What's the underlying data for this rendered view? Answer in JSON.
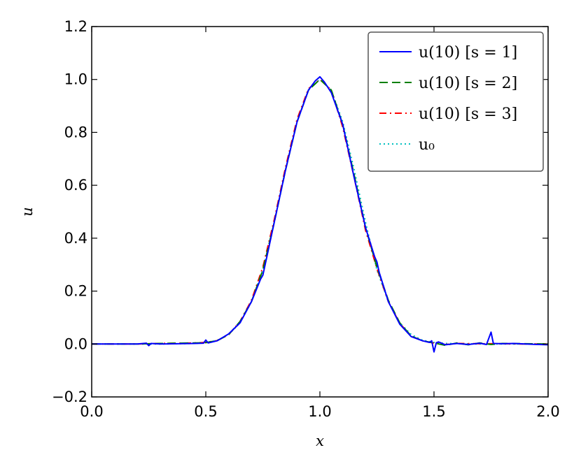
{
  "chart_data": {
    "type": "line",
    "xlabel": "x",
    "ylabel": "u",
    "xlim": [
      0.0,
      2.0
    ],
    "ylim": [
      -0.2,
      1.2
    ],
    "x_ticks": [
      "0.0",
      "0.5",
      "1.0",
      "1.5",
      "2.0"
    ],
    "y_ticks": [
      "−0.2",
      "0.0",
      "0.2",
      "0.4",
      "0.6",
      "0.8",
      "1.0",
      "1.2"
    ],
    "grid": false,
    "legend_position": "top-right",
    "series": [
      {
        "name": "u(10) [s = 1]",
        "color": "#0000ff",
        "style": "solid",
        "points": [
          [
            0.0,
            0.0
          ],
          [
            0.2,
            0.0
          ],
          [
            0.24,
            0.003
          ],
          [
            0.25,
            -0.006
          ],
          [
            0.26,
            0.002
          ],
          [
            0.3,
            0.0
          ],
          [
            0.45,
            0.002
          ],
          [
            0.49,
            0.003
          ],
          [
            0.5,
            0.015
          ],
          [
            0.51,
            0.004
          ],
          [
            0.55,
            0.012
          ],
          [
            0.6,
            0.038
          ],
          [
            0.65,
            0.08
          ],
          [
            0.7,
            0.16
          ],
          [
            0.74,
            0.245
          ],
          [
            0.75,
            0.26
          ],
          [
            0.76,
            0.3
          ],
          [
            0.8,
            0.46
          ],
          [
            0.85,
            0.66
          ],
          [
            0.9,
            0.84
          ],
          [
            0.95,
            0.96
          ],
          [
            0.98,
            0.995
          ],
          [
            1.0,
            1.01
          ],
          [
            1.02,
            0.99
          ],
          [
            1.05,
            0.95
          ],
          [
            1.1,
            0.83
          ],
          [
            1.15,
            0.63
          ],
          [
            1.2,
            0.44
          ],
          [
            1.24,
            0.33
          ],
          [
            1.25,
            0.31
          ],
          [
            1.26,
            0.27
          ],
          [
            1.3,
            0.16
          ],
          [
            1.35,
            0.075
          ],
          [
            1.4,
            0.028
          ],
          [
            1.45,
            0.012
          ],
          [
            1.48,
            0.006
          ],
          [
            1.49,
            0.012
          ],
          [
            1.5,
            -0.03
          ],
          [
            1.51,
            0.005
          ],
          [
            1.52,
            0.008
          ],
          [
            1.55,
            -0.003
          ],
          [
            1.6,
            0.002
          ],
          [
            1.65,
            -0.002
          ],
          [
            1.7,
            0.003
          ],
          [
            1.73,
            -0.002
          ],
          [
            1.75,
            0.045
          ],
          [
            1.76,
            0.002
          ],
          [
            1.8,
            0.001
          ],
          [
            1.85,
            0.002
          ],
          [
            1.9,
            0.0
          ],
          [
            2.0,
            -0.003
          ]
        ]
      },
      {
        "name": "u(10) [s = 2]",
        "color": "#008000",
        "style": "dashed",
        "points": [
          [
            0.0,
            0.0
          ],
          [
            0.2,
            0.0
          ],
          [
            0.3,
            0.002
          ],
          [
            0.45,
            0.004
          ],
          [
            0.5,
            0.005
          ],
          [
            0.55,
            0.013
          ],
          [
            0.6,
            0.035
          ],
          [
            0.65,
            0.085
          ],
          [
            0.7,
            0.16
          ],
          [
            0.75,
            0.28
          ],
          [
            0.8,
            0.46
          ],
          [
            0.85,
            0.66
          ],
          [
            0.9,
            0.84
          ],
          [
            0.95,
            0.96
          ],
          [
            1.0,
            1.0
          ],
          [
            1.05,
            0.96
          ],
          [
            1.1,
            0.83
          ],
          [
            1.15,
            0.64
          ],
          [
            1.2,
            0.44
          ],
          [
            1.25,
            0.29
          ],
          [
            1.3,
            0.165
          ],
          [
            1.35,
            0.08
          ],
          [
            1.4,
            0.03
          ],
          [
            1.45,
            0.012
          ],
          [
            1.5,
            0.004
          ],
          [
            1.55,
            -0.005
          ],
          [
            1.6,
            0.004
          ],
          [
            1.65,
            -0.003
          ],
          [
            1.7,
            0.004
          ],
          [
            1.75,
            -0.002
          ],
          [
            1.8,
            0.002
          ],
          [
            1.9,
            0.001
          ],
          [
            2.0,
            0.0
          ]
        ]
      },
      {
        "name": "u(10) [s = 3]",
        "color": "#ff0000",
        "style": "dashdot",
        "points": [
          [
            0.0,
            0.0
          ],
          [
            0.2,
            0.0
          ],
          [
            0.3,
            0.002
          ],
          [
            0.45,
            0.004
          ],
          [
            0.5,
            0.006
          ],
          [
            0.55,
            0.013
          ],
          [
            0.6,
            0.035
          ],
          [
            0.65,
            0.085
          ],
          [
            0.7,
            0.165
          ],
          [
            0.75,
            0.29
          ],
          [
            0.8,
            0.47
          ],
          [
            0.85,
            0.67
          ],
          [
            0.9,
            0.85
          ],
          [
            0.95,
            0.965
          ],
          [
            1.0,
            1.0
          ],
          [
            1.05,
            0.96
          ],
          [
            1.1,
            0.82
          ],
          [
            1.15,
            0.63
          ],
          [
            1.2,
            0.43
          ],
          [
            1.25,
            0.285
          ],
          [
            1.3,
            0.16
          ],
          [
            1.35,
            0.078
          ],
          [
            1.4,
            0.03
          ],
          [
            1.45,
            0.012
          ],
          [
            1.5,
            0.003
          ],
          [
            1.55,
            -0.002
          ],
          [
            1.6,
            0.002
          ],
          [
            1.7,
            0.001
          ],
          [
            1.8,
            0.001
          ],
          [
            1.9,
            0.0
          ],
          [
            2.0,
            0.0
          ]
        ]
      },
      {
        "name": "u₀",
        "color": "#00bfbf",
        "style": "dotted",
        "points": [
          [
            0.0,
            0.0
          ],
          [
            0.3,
            0.0
          ],
          [
            0.45,
            0.002
          ],
          [
            0.5,
            0.006
          ],
          [
            0.55,
            0.014
          ],
          [
            0.6,
            0.036
          ],
          [
            0.65,
            0.08
          ],
          [
            0.7,
            0.16
          ],
          [
            0.75,
            0.28
          ],
          [
            0.8,
            0.46
          ],
          [
            0.85,
            0.66
          ],
          [
            0.9,
            0.84
          ],
          [
            0.95,
            0.96
          ],
          [
            1.0,
            1.0
          ],
          [
            1.05,
            0.96
          ],
          [
            1.1,
            0.84
          ],
          [
            1.15,
            0.66
          ],
          [
            1.2,
            0.46
          ],
          [
            1.25,
            0.28
          ],
          [
            1.3,
            0.16
          ],
          [
            1.35,
            0.08
          ],
          [
            1.4,
            0.036
          ],
          [
            1.45,
            0.014
          ],
          [
            1.5,
            0.006
          ],
          [
            1.55,
            0.002
          ],
          [
            1.7,
            0.0
          ],
          [
            2.0,
            0.0
          ]
        ]
      }
    ]
  }
}
